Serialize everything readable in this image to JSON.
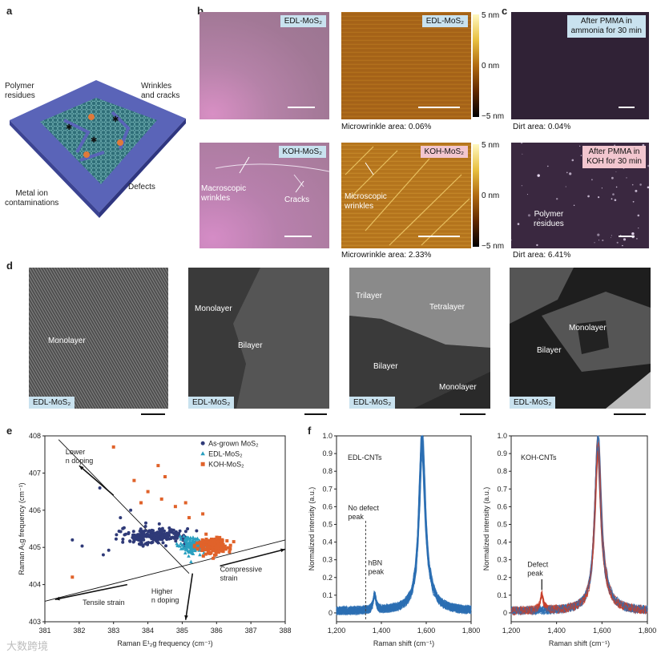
{
  "panel_labels": {
    "a": "a",
    "b": "b",
    "c": "c",
    "d": "d",
    "e": "e",
    "f": "f"
  },
  "panel_a": {
    "labels": {
      "polymer": "Polymer\nresidues",
      "wrinkles": "Wrinkles\nand cracks",
      "metal": "Metal ion\ncontaminations",
      "defects": "Defects"
    }
  },
  "panel_b": {
    "edl_optical_tag": "EDL-MoS₂",
    "edl_afm_tag": "EDL-MoS₂",
    "koh_optical_tag": "KOH-MoS₂",
    "koh_afm_tag": "KOH-MoS₂",
    "edl_area": "Microwrinkle area: 0.06%",
    "koh_area": "Microwrinkle area: 2.33%",
    "scale_top": [
      "5 nm",
      "0 nm",
      "−5 nm"
    ],
    "scale_bottom": [
      "5 nm",
      "0 nm",
      "−5 nm"
    ],
    "ann_macro": "Macroscopic\nwrinkles",
    "ann_cracks": "Cracks",
    "ann_micro": "Microscopic\nwrinkles"
  },
  "panel_c": {
    "tag_top": "After PMMA in\nammonia for 30 min",
    "tag_bottom": "After PMMA in\nKOH for 30 min",
    "dirt_top": "Dirt area: 0.04%",
    "dirt_bottom": "Dirt area: 6.41%",
    "ann_polymer": "Polymer\nresidues"
  },
  "panel_d": {
    "tags": [
      "EDL-MoS₂",
      "EDL-MoS₂",
      "EDL-MoS₂",
      "EDL-MoS₂"
    ],
    "img1": {
      "mono": "Monolayer"
    },
    "img2": {
      "mono": "Monolayer",
      "bi": "Bilayer"
    },
    "img3": {
      "tri": "Trilayer",
      "tetra": "Tetralayer",
      "bi": "Bilayer",
      "mono": "Monolayer"
    },
    "img4": {
      "mono": "Monolayer",
      "bi": "Bilayer"
    }
  },
  "colors": {
    "asgrown": "#2f3a78",
    "edl": "#2aa0c0",
    "koh": "#e0622a",
    "cnt_blue": "#2c6fb3",
    "cnt_red": "#c8402a"
  },
  "chart_data": [
    {
      "type": "scatter",
      "title": "",
      "xlabel": "Raman E¹₂g frequency (cm⁻¹)",
      "ylabel": "Raman A₁g frequency (cm⁻¹)",
      "xlim": [
        381,
        388
      ],
      "ylim": [
        403,
        408
      ],
      "xticks": [
        "381",
        "382",
        "383",
        "384",
        "385",
        "386",
        "387",
        "388"
      ],
      "yticks": [
        "403",
        "404",
        "405",
        "406",
        "407",
        "408"
      ],
      "legend": [
        "As-grown MoS₂",
        "EDL-MoS₂",
        "KOH-MoS₂"
      ],
      "legend_position": "top-right",
      "annotations": {
        "lower": "Lower\nn doping",
        "higher": "Higher\nn doping",
        "tensile": "Tensile strain",
        "compressive": "Compressive\nstrain"
      },
      "series": [
        {
          "name": "As-grown MoS₂",
          "center": [
            384.2,
            405.3
          ],
          "spread": [
            0.9,
            0.18
          ],
          "n": 220,
          "extra": [
            [
              381.8,
              405.2
            ],
            [
              382.6,
              406.6
            ],
            [
              382.7,
              404.8
            ],
            [
              383.2,
              405.8
            ],
            [
              383.5,
              406.0
            ]
          ]
        },
        {
          "name": "EDL-MoS₂",
          "center": [
            385.3,
            405.05
          ],
          "spread": [
            0.35,
            0.18
          ],
          "n": 150,
          "extra": []
        },
        {
          "name": "KOH-MoS₂",
          "center": [
            385.9,
            405.05
          ],
          "spread": [
            0.4,
            0.18
          ],
          "n": 200,
          "extra": [
            [
              383.0,
              407.7
            ],
            [
              383.6,
              406.8
            ],
            [
              384.0,
              406.5
            ],
            [
              384.4,
              406.3
            ],
            [
              384.8,
              406.1
            ],
            [
              385.1,
              406.2
            ],
            [
              385.2,
              405.8
            ],
            [
              381.8,
              404.2
            ],
            [
              384.3,
              407.2
            ],
            [
              384.5,
              406.9
            ],
            [
              385.6,
              405.9
            ],
            [
              383.8,
              406.2
            ]
          ]
        }
      ]
    },
    {
      "type": "line",
      "title": "EDL-CNTs",
      "xlabel": "Raman shift (cm⁻¹)",
      "ylabel": "Normalized intensity (a.u.)",
      "xlim": [
        1200,
        1800
      ],
      "ylim": [
        -0.05,
        1.0
      ],
      "xticks": [
        "1,200",
        "1,400",
        "1,600",
        "1,800"
      ],
      "yticks": [
        "0",
        "0.1",
        "0.2",
        "0.3",
        "0.4",
        "0.5",
        "0.6",
        "0.7",
        "0.8",
        "0.9",
        "1.0"
      ],
      "annotations": {
        "nodefect": "No defect\npeak",
        "hbn": "hBN\npeak"
      },
      "peak_g": 1582,
      "peak_hbn": 1370,
      "defect_line": 1330
    },
    {
      "type": "line",
      "title": "KOH-CNTs",
      "xlabel": "Raman shift (cm⁻¹)",
      "ylabel": "Normalized intensity (a.u.)",
      "xlim": [
        1200,
        1800
      ],
      "ylim": [
        -0.05,
        1.0
      ],
      "xticks": [
        "1,200",
        "1,400",
        "1,600",
        "1,800"
      ],
      "yticks": [
        "0",
        "0.1",
        "0.2",
        "0.3",
        "0.4",
        "0.5",
        "0.6",
        "0.7",
        "0.8",
        "0.9",
        "1.0"
      ],
      "annotations": {
        "defect": "Defect\npeak"
      },
      "peak_g": 1582,
      "peak_d": 1335
    }
  ],
  "watermark": "大数跨境"
}
